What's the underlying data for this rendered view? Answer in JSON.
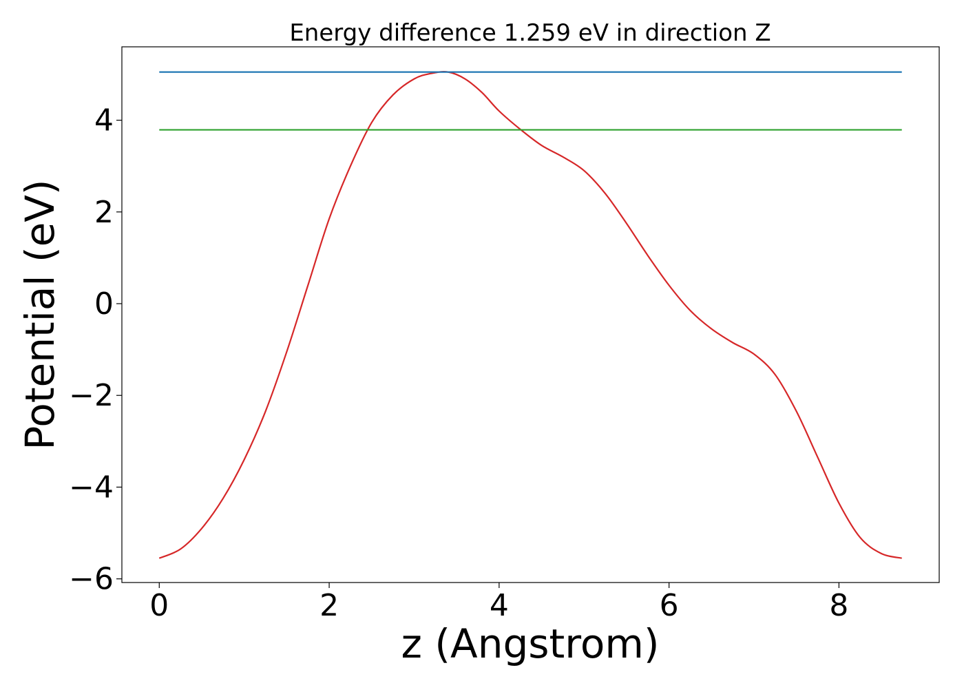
{
  "chart_data": {
    "type": "line",
    "title": "Energy difference 1.259 eV in direction Z",
    "xlabel": "z (Angstrom)",
    "ylabel": "Potential (eV)",
    "xlim": [
      -0.44,
      9.18
    ],
    "ylim": [
      -6.08,
      5.6
    ],
    "x_ticks": [
      0,
      2,
      4,
      6,
      8
    ],
    "y_ticks": [
      -6,
      -4,
      -2,
      0,
      2,
      4
    ],
    "x_tick_labels": [
      "0",
      "2",
      "4",
      "6",
      "8"
    ],
    "y_tick_labels": [
      "−6",
      "−4",
      "−2",
      "0",
      "2",
      "4"
    ],
    "grid": false,
    "legend": "none",
    "series": [
      {
        "color": "#d62728",
        "style": "curve",
        "x": [
          0,
          0.25,
          0.5,
          0.75,
          1.0,
          1.25,
          1.5,
          1.75,
          2.0,
          2.25,
          2.5,
          2.75,
          3.0,
          3.2,
          3.4,
          3.6,
          3.8,
          4.0,
          4.25,
          4.5,
          4.75,
          5.0,
          5.25,
          5.5,
          5.75,
          6.0,
          6.25,
          6.5,
          6.75,
          7.0,
          7.25,
          7.5,
          7.75,
          8.0,
          8.25,
          8.5,
          8.74
        ],
        "y": [
          -5.55,
          -5.35,
          -4.9,
          -4.25,
          -3.4,
          -2.35,
          -1.05,
          0.4,
          1.85,
          3.0,
          3.95,
          4.55,
          4.9,
          5.02,
          5.05,
          4.9,
          4.6,
          4.2,
          3.8,
          3.45,
          3.2,
          2.9,
          2.4,
          1.75,
          1.05,
          0.4,
          -0.15,
          -0.55,
          -0.85,
          -1.1,
          -1.55,
          -2.35,
          -3.35,
          -4.35,
          -5.1,
          -5.45,
          -5.55
        ]
      },
      {
        "color": "#1f77b4",
        "style": "hline",
        "x": [
          0,
          8.74
        ],
        "y": [
          5.05,
          5.05
        ]
      },
      {
        "color": "#2ca02c",
        "style": "hline",
        "x": [
          0,
          8.74
        ],
        "y": [
          3.79,
          3.79
        ]
      }
    ]
  }
}
